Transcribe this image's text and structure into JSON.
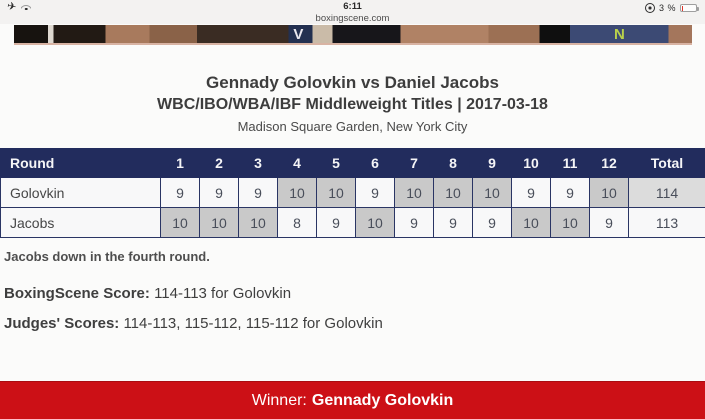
{
  "status_bar": {
    "time": "6:11",
    "url": "boxingscene.com",
    "battery_text": "3 %",
    "icons": [
      "airplane-icon",
      "wifi-icon",
      "orientation-lock-icon",
      "battery-icon"
    ]
  },
  "poster": {
    "vs_letter": "V",
    "n_letter": "N"
  },
  "fight": {
    "title": "Gennady Golovkin vs Daniel Jacobs",
    "subtitle": "WBC/IBO/WBA/IBF Middleweight Titles | 2017-03-18",
    "venue": "Madison Square Garden, New York City"
  },
  "scorecard": {
    "header": [
      "Round",
      "1",
      "2",
      "3",
      "4",
      "5",
      "6",
      "7",
      "8",
      "9",
      "10",
      "11",
      "12",
      "Total"
    ],
    "rows": [
      {
        "name": "Golovkin",
        "scores": [
          9,
          9,
          9,
          10,
          10,
          9,
          10,
          10,
          10,
          9,
          9,
          10
        ],
        "total": 114
      },
      {
        "name": "Jacobs",
        "scores": [
          10,
          10,
          10,
          8,
          9,
          10,
          9,
          9,
          9,
          10,
          10,
          9
        ],
        "total": 113
      }
    ]
  },
  "notes": {
    "knockdown": "Jacobs down in the fourth round.",
    "boxingscene_label": "BoxingScene Score:",
    "boxingscene_value": "114-113 for Golovkin",
    "judges_label": "Judges' Scores:",
    "judges_value": "114-113, 115-112, 115-112 for Golovkin"
  },
  "winner_banner": {
    "label": "Winner:",
    "name": "Gennady Golovkin"
  },
  "colors": {
    "header_navy": "#222c5d",
    "banner_red": "#cc1016",
    "score10_gray": "#c9c9c9",
    "total_highlight_gray": "#dcdcdc",
    "status_bar_bg": "#f3f2f1"
  }
}
